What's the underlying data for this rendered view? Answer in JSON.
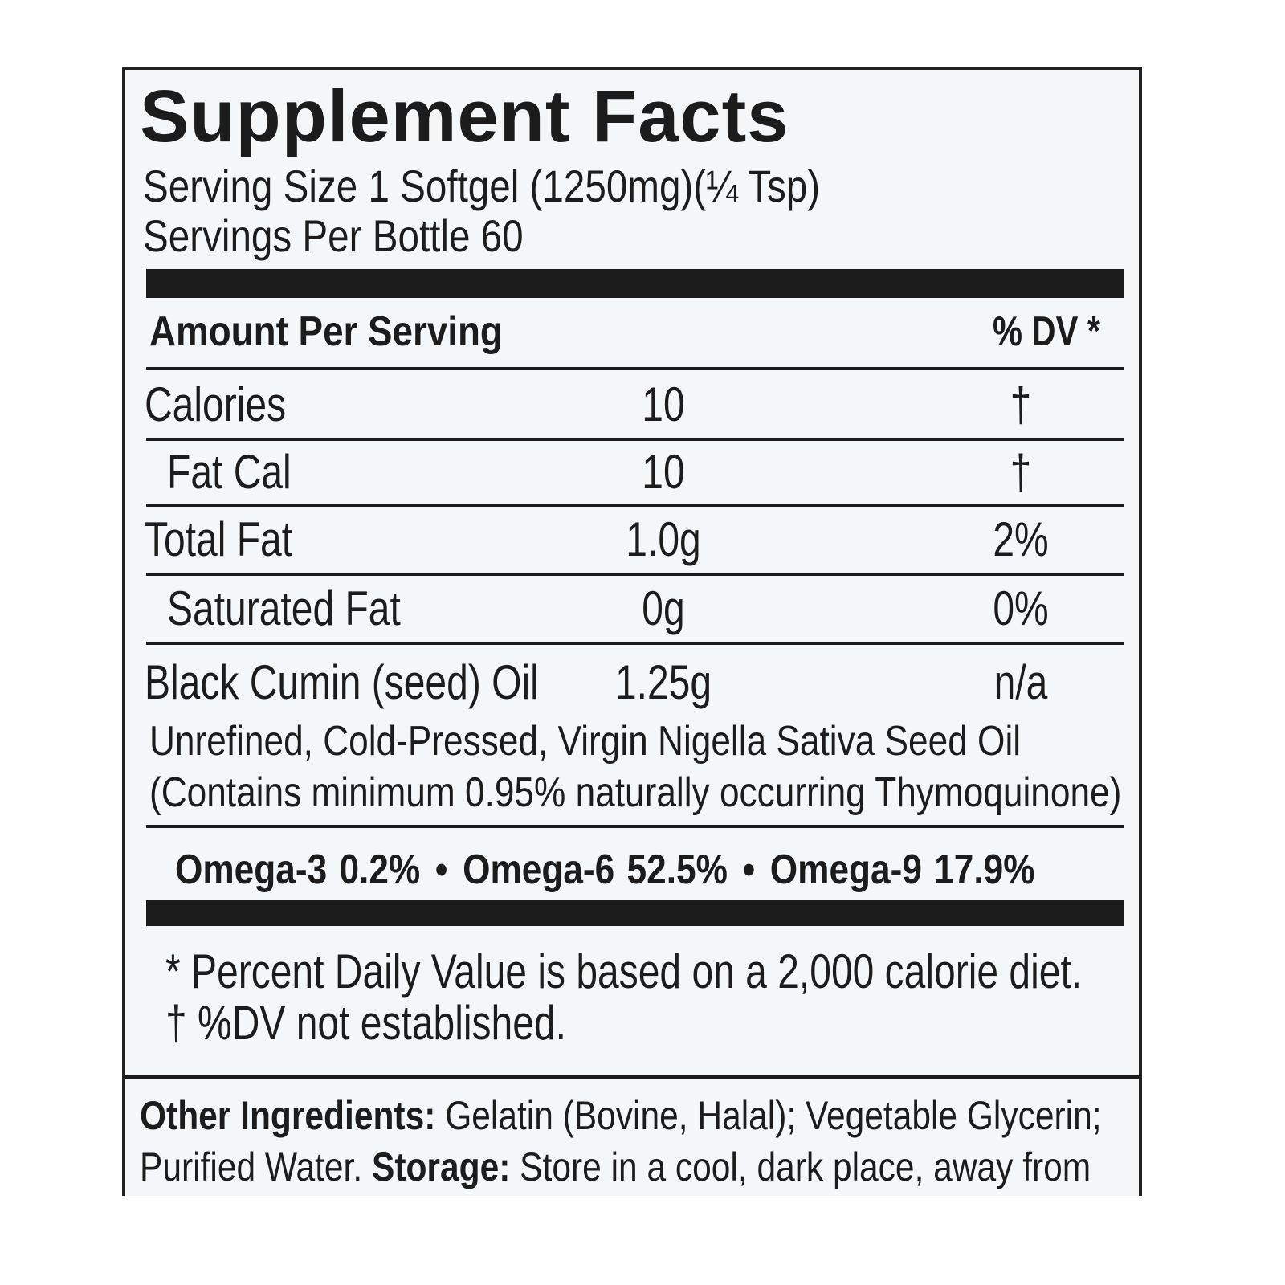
{
  "title": "Supplement Facts",
  "serving_size": "Serving Size 1 Softgel (1250mg)(¼ Tsp)",
  "servings_per_container": "Servings Per Bottle 60",
  "table": {
    "header": [
      "Amount Per Serving",
      "% DV *"
    ],
    "rows": [
      [
        "Calories",
        "10",
        "†"
      ],
      [
        "Fat Cal",
        "10",
        "†"
      ],
      [
        "Total Fat",
        "1.0g",
        "2%"
      ],
      [
        "Saturated Fat",
        "0g",
        "0%"
      ],
      [
        "Black Cumin (seed) Oil",
        "1.25g",
        "n/a"
      ]
    ]
  },
  "ingredient_note": [
    "Unrefined, Cold-Pressed, Virgin Nigella Sativa Seed Oil",
    "(Contains minimum 0.95% naturally occurring Thymoquinone)"
  ],
  "omegas": [
    {
      "name": "Omega-3",
      "value": "0.2%"
    },
    {
      "name": "Omega-6",
      "value": "52.5%"
    },
    {
      "name": "Omega-9",
      "value": "17.9%"
    }
  ],
  "footnotes": [
    "* Percent Daily Value is based on a 2,000 calorie diet.",
    "† %DV not established."
  ],
  "other_ingredients": {
    "label": "Other Ingredients:",
    "text": "Gelatin (Bovine, Halal); Vegetable Glycerin; Purified Water."
  },
  "storage": {
    "label": "Storage:",
    "text": "Store in a cool, dark place, away from"
  }
}
